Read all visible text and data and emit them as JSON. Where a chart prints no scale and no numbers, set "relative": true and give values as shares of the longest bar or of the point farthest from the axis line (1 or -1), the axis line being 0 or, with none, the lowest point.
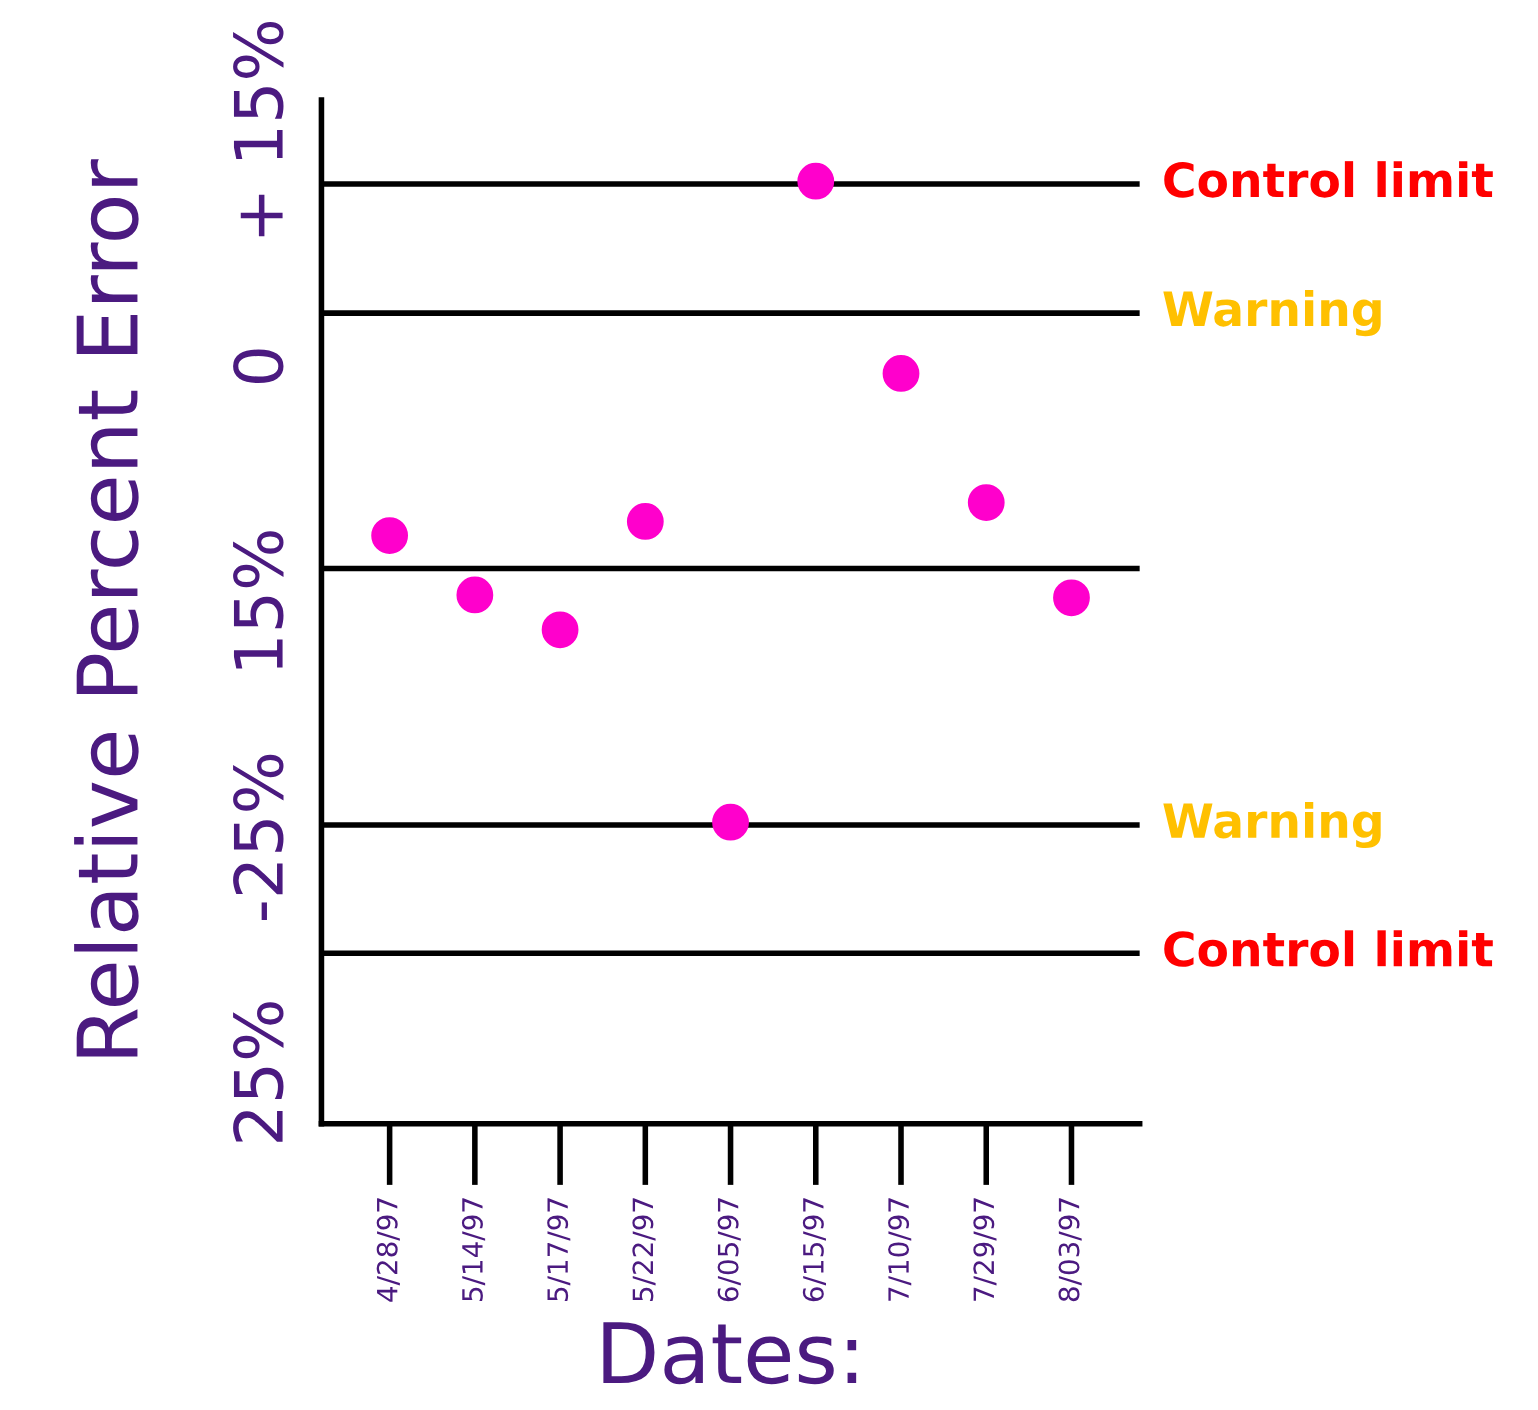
{
  "chart_data": {
    "type": "scatter",
    "ylabel": "Relative Percent Error",
    "xlabel": "Dates:",
    "relative": true,
    "categories": [
      "4/28/97",
      "5/14/97",
      "5/17/97",
      "5/22/97",
      "6/05/97",
      "6/15/97",
      "7/10/97",
      "7/29/97",
      "8/03/97"
    ],
    "series": [
      {
        "color": "#ff00cc",
        "values": [
          0.624,
          0.561,
          0.524,
          0.639,
          0.32,
          1.0,
          0.796,
          0.659,
          0.558
        ]
      }
    ],
    "marker": "circle",
    "grid": false,
    "legend": false,
    "annotations": [
      "+ 15%",
      "0",
      "15%",
      "-25%",
      "25%"
    ],
    "ref_lines": [
      {
        "axis": "y",
        "value": 0.997,
        "label": "Control limit"
      },
      {
        "axis": "y",
        "value": 0.86,
        "label": "Warning"
      },
      {
        "axis": "y",
        "value": 0.589
      },
      {
        "axis": "y",
        "value": 0.317,
        "label": "Warning"
      },
      {
        "axis": "y",
        "value": 0.181,
        "label": "Control limit"
      }
    ]
  }
}
